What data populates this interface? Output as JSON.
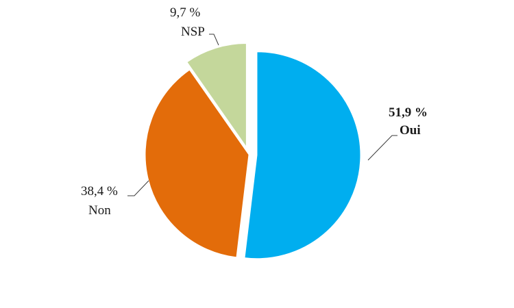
{
  "chart_data": {
    "type": "pie",
    "title": "",
    "slices": [
      {
        "name": "Oui",
        "value": 51.9,
        "value_label": "51,9  %",
        "color": "#00AEEF",
        "label_bold": true,
        "exploded": true
      },
      {
        "name": "Non",
        "value": 38.4,
        "value_label": "38,4 %",
        "color": "#E36C0A",
        "label_bold": false,
        "exploded": false
      },
      {
        "name": "NSP",
        "value": 9.7,
        "value_label": "9,7 %",
        "color": "#C4D79B",
        "label_bold": false,
        "exploded": true
      }
    ],
    "start_angle_deg": 0,
    "direction": "clockwise",
    "legend": "none",
    "labels": "outside-with-leader-lines"
  }
}
